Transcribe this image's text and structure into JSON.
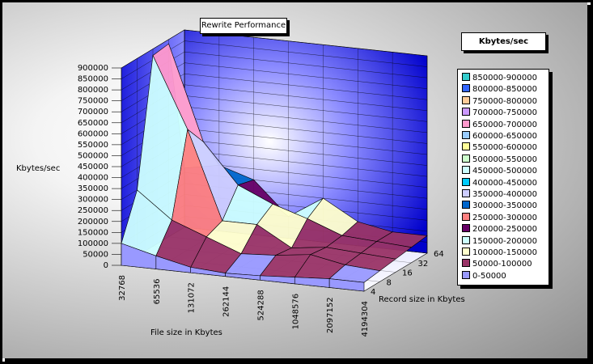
{
  "chart_data": {
    "type": "surface",
    "title": "Rewrite Performance",
    "xlabel": "File size in Kbytes",
    "ylabel": "Kbytes/sec",
    "zlabel": "Record size in Kbytes",
    "legend_title": "Kbytes/sec",
    "y_ticks": [
      "0",
      "50000",
      "100000",
      "150000",
      "200000",
      "250000",
      "300000",
      "350000",
      "400000",
      "450000",
      "500000",
      "550000",
      "600000",
      "650000",
      "700000",
      "750000",
      "800000",
      "850000",
      "900000"
    ],
    "ylim": [
      0,
      900000
    ],
    "x_categories": [
      "32768",
      "65536",
      "131072",
      "262144",
      "524288",
      "1048576",
      "2097152",
      "4194304"
    ],
    "z_categories": [
      "4",
      "8",
      "16",
      "32",
      "64"
    ],
    "series": [
      {
        "name": "4",
        "values": [
          100000,
          60000,
          25000,
          15000,
          20000,
          30000,
          40000,
          40000
        ]
      },
      {
        "name": "8",
        "values": [
          300000,
          180000,
          120000,
          60000,
          70000,
          90000,
          60000,
          50000
        ]
      },
      {
        "name": "16",
        "values": [
          870000,
          550000,
          150000,
          150000,
          60000,
          80000,
          70000,
          60000
        ]
      },
      {
        "name": "32",
        "values": [
          880000,
          450000,
          270000,
          200000,
          150000,
          90000,
          80000,
          70000
        ]
      },
      {
        "name": "64",
        "values": [
          270000,
          300000,
          250000,
          100000,
          200000,
          110000,
          80000,
          80000
        ]
      }
    ],
    "legend": [
      {
        "label": "850000-900000",
        "color": "#33cccc"
      },
      {
        "label": "800000-850000",
        "color": "#3366ff"
      },
      {
        "label": "750000-800000",
        "color": "#ffcc99"
      },
      {
        "label": "700000-750000",
        "color": "#cc99ff"
      },
      {
        "label": "650000-700000",
        "color": "#ff99cc"
      },
      {
        "label": "600000-650000",
        "color": "#99ccff"
      },
      {
        "label": "550000-600000",
        "color": "#ffff99"
      },
      {
        "label": "500000-550000",
        "color": "#ccffcc"
      },
      {
        "label": "450000-500000",
        "color": "#ccffff"
      },
      {
        "label": "400000-450000",
        "color": "#00ccff"
      },
      {
        "label": "350000-400000",
        "color": "#ccccff"
      },
      {
        "label": "300000-350000",
        "color": "#0066cc"
      },
      {
        "label": "250000-300000",
        "color": "#ff8080"
      },
      {
        "label": "200000-250000",
        "color": "#660066"
      },
      {
        "label": "150000-200000",
        "color": "#ccffff"
      },
      {
        "label": "100000-150000",
        "color": "#ffffcc"
      },
      {
        "label": "50000-100000",
        "color": "#993366"
      },
      {
        "label": "0-50000",
        "color": "#9999ff"
      }
    ]
  }
}
